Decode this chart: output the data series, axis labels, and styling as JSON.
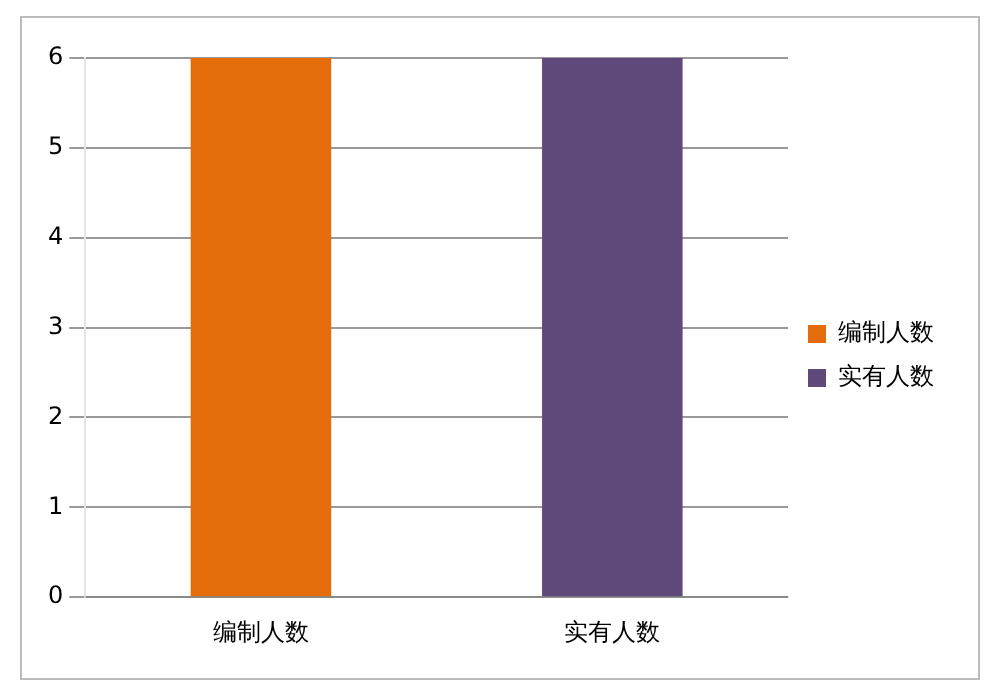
{
  "chart_data": {
    "type": "bar",
    "categories": [
      "编制人数",
      "实有人数"
    ],
    "series": [
      {
        "name": "编制人数",
        "color": "#e46c0a",
        "values": [
          6,
          null
        ]
      },
      {
        "name": "实有人数",
        "color": "#604a7b",
        "values": [
          null,
          6
        ]
      }
    ],
    "ylim": [
      0,
      6
    ],
    "yticks": [
      0,
      1,
      2,
      3,
      4,
      5,
      6
    ],
    "grid": "y",
    "legend": "right"
  }
}
